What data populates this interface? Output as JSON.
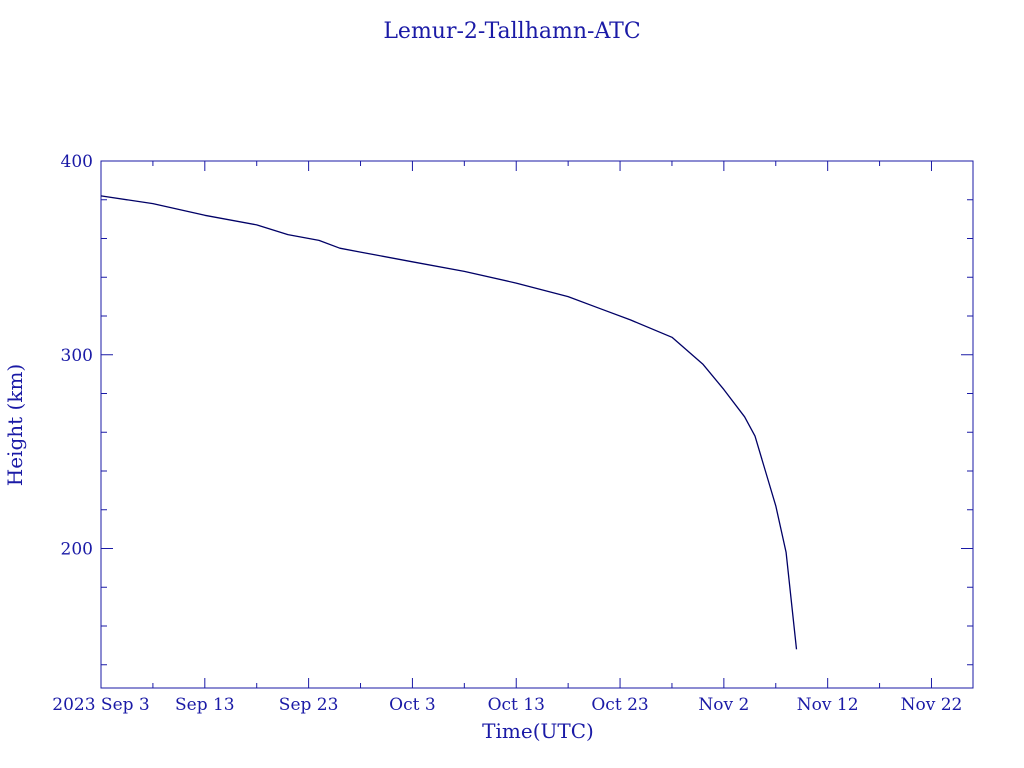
{
  "chart_data": {
    "type": "line",
    "title": "Lemur-2-Tallhamn-ATC",
    "xlabel": "Time(UTC)",
    "ylabel": "Height (km)",
    "x_tick_labels": [
      "2023 Sep  3",
      "Sep 13",
      "Sep 23",
      "Oct  3",
      "Oct 13",
      "Oct 23",
      "Nov  2",
      "Nov 12",
      "Nov 22"
    ],
    "y_tick_labels": [
      "200",
      "300",
      "400"
    ],
    "y_ticks": [
      200,
      300,
      400
    ],
    "xlim": [
      "2023-09-03",
      "2023-11-26"
    ],
    "ylim": [
      128,
      400
    ],
    "grid": false,
    "colors": {
      "axes": "#1a1aa6",
      "line": "#000066"
    },
    "series": [
      {
        "x": [
          "2023-09-03",
          "2023-09-08",
          "2023-09-13",
          "2023-09-18",
          "2023-09-21",
          "2023-09-24",
          "2023-09-26",
          "2023-09-28",
          "2023-10-03",
          "2023-10-08",
          "2023-10-13",
          "2023-10-18",
          "2023-10-21",
          "2023-10-24",
          "2023-10-28",
          "2023-10-31",
          "2023-11-02",
          "2023-11-04",
          "2023-11-05",
          "2023-11-06",
          "2023-11-07",
          "2023-11-08",
          "2023-11-09"
        ],
        "y": [
          382,
          378,
          372,
          367,
          362,
          359,
          355,
          353,
          348,
          343,
          337,
          330,
          324,
          318,
          309,
          295,
          282,
          268,
          258,
          240,
          222,
          198,
          148
        ]
      }
    ]
  }
}
